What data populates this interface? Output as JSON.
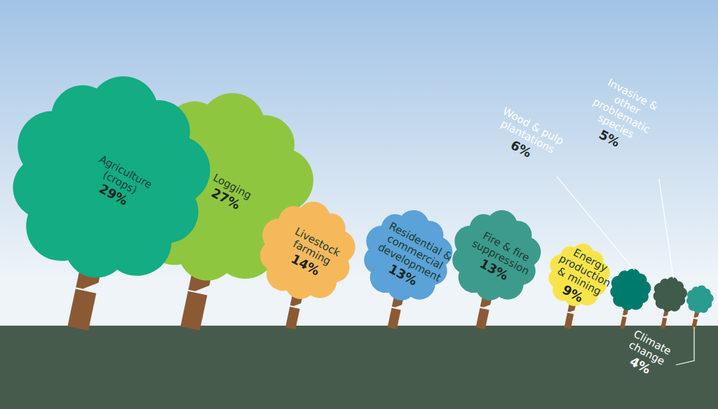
{
  "chart_data": {
    "type": "pictograph",
    "categories": [
      "Agriculture (crops)",
      "Logging",
      "Livestock farming",
      "Residential & commercial development",
      "Fire & fire suppression",
      "Energy production & mining",
      "Wood & pulp plantations",
      "Invasive & other problematic species",
      "Climate change"
    ],
    "values": [
      29,
      27,
      14,
      13,
      13,
      9,
      6,
      5,
      4
    ],
    "value_labels": [
      "29%",
      "27%",
      "14%",
      "13%",
      "13%",
      "9%",
      "6%",
      "5%",
      "4%"
    ],
    "colors": [
      "#13ac83",
      "#8fc63f",
      "#f5b95c",
      "#5aa2d7",
      "#3d9b8d",
      "#f8e44a",
      "#007a6d",
      "#3e5b4b",
      "#2a9c8f"
    ],
    "data_labels": true,
    "tick_labels": false
  }
}
